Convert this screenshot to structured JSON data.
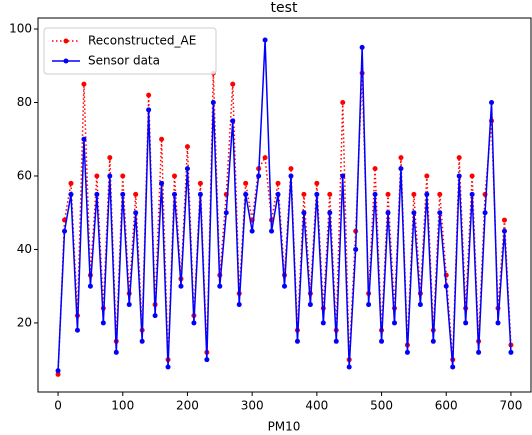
{
  "chart_data": {
    "type": "line",
    "title": "test",
    "x_label": "PM10",
    "x": [
      0,
      10,
      20,
      30,
      40,
      50,
      60,
      70,
      80,
      90,
      100,
      110,
      120,
      130,
      140,
      150,
      160,
      170,
      180,
      190,
      200,
      210,
      220,
      230,
      240,
      250,
      260,
      270,
      280,
      290,
      300,
      310,
      320,
      330,
      340,
      350,
      360,
      370,
      380,
      390,
      400,
      410,
      420,
      430,
      440,
      450,
      460,
      470,
      480,
      490,
      500,
      510,
      520,
      530,
      540,
      550,
      560,
      570,
      580,
      590,
      600,
      610,
      620,
      630,
      640,
      650,
      660,
      670,
      680,
      690,
      700
    ],
    "series": [
      {
        "name": "Reconstructed_AE",
        "color": "#ff0000",
        "style": "dotted",
        "values": [
          6,
          48,
          58,
          22,
          85,
          33,
          60,
          24,
          65,
          15,
          60,
          28,
          55,
          18,
          82,
          25,
          70,
          10,
          60,
          32,
          68,
          22,
          58,
          12,
          88,
          33,
          55,
          85,
          28,
          58,
          48,
          62,
          65,
          48,
          58,
          33,
          62,
          18,
          55,
          28,
          58,
          24,
          55,
          18,
          80,
          10,
          45,
          88,
          28,
          62,
          18,
          55,
          24,
          65,
          14,
          55,
          28,
          60,
          18,
          55,
          33,
          10,
          65,
          24,
          60,
          15,
          55,
          75,
          24,
          48,
          14
        ]
      },
      {
        "name": "Sensor data",
        "color": "#0000ff",
        "style": "solid",
        "values": [
          7,
          45,
          55,
          18,
          70,
          30,
          55,
          20,
          60,
          12,
          55,
          25,
          50,
          15,
          78,
          22,
          58,
          8,
          55,
          30,
          62,
          20,
          55,
          10,
          80,
          30,
          50,
          75,
          25,
          55,
          45,
          60,
          97,
          45,
          55,
          30,
          60,
          15,
          50,
          25,
          55,
          20,
          50,
          15,
          60,
          8,
          40,
          95,
          25,
          55,
          15,
          50,
          20,
          62,
          12,
          50,
          25,
          55,
          15,
          50,
          30,
          8,
          60,
          20,
          55,
          12,
          50,
          80,
          20,
          45,
          12
        ]
      }
    ],
    "xlim": [
      -31,
      731
    ],
    "ylim": [
      1.2,
      103
    ],
    "xticks": [
      0,
      100,
      200,
      300,
      400,
      500,
      600,
      700
    ],
    "yticks": [
      20,
      40,
      60,
      80,
      100
    ],
    "legend": "upper left"
  }
}
